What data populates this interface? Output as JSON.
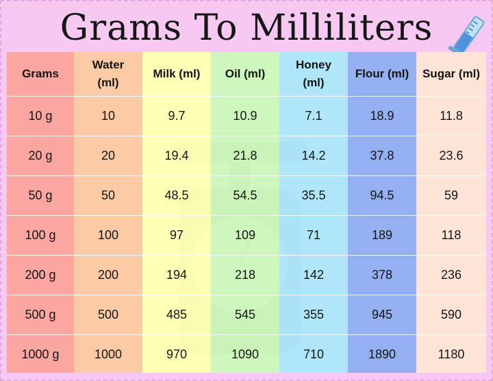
{
  "title": "Grams To Milliliters",
  "headers": [
    "Grams",
    "Water (ml)",
    "Milk (ml)",
    "Oil (ml)",
    "Honey (ml)",
    "Flour (ml)",
    "Sugar (ml)"
  ],
  "rows": [
    [
      "10 g",
      "10",
      "9.7",
      "10.9",
      "7.1",
      "18.9",
      "11.8"
    ],
    [
      "20 g",
      "20",
      "19.4",
      "21.8",
      "14.2",
      "37.8",
      "23.6"
    ],
    [
      "50 g",
      "50",
      "48.5",
      "54.5",
      "35.5",
      "94.5",
      "59"
    ],
    [
      "100 g",
      "100",
      "97",
      "109",
      "71",
      "189",
      "118"
    ],
    [
      "200 g",
      "200",
      "194",
      "218",
      "142",
      "378",
      "236"
    ],
    [
      "500 g",
      "500",
      "485",
      "545",
      "355",
      "945",
      "590"
    ],
    [
      "1000 g",
      "1000",
      "970",
      "1090",
      "710",
      "1890",
      "1180"
    ]
  ],
  "colors": {
    "background": "#f6c8f2",
    "column_colors": [
      "#f8948f",
      "#fcc498",
      "#ffffa8",
      "#c4f6b2",
      "#a2e2f8",
      "#82a2ee",
      "#fee2d2"
    ]
  },
  "icons": [
    "measuring-cylinder-icon",
    "kitchen-scale-watermark"
  ]
}
